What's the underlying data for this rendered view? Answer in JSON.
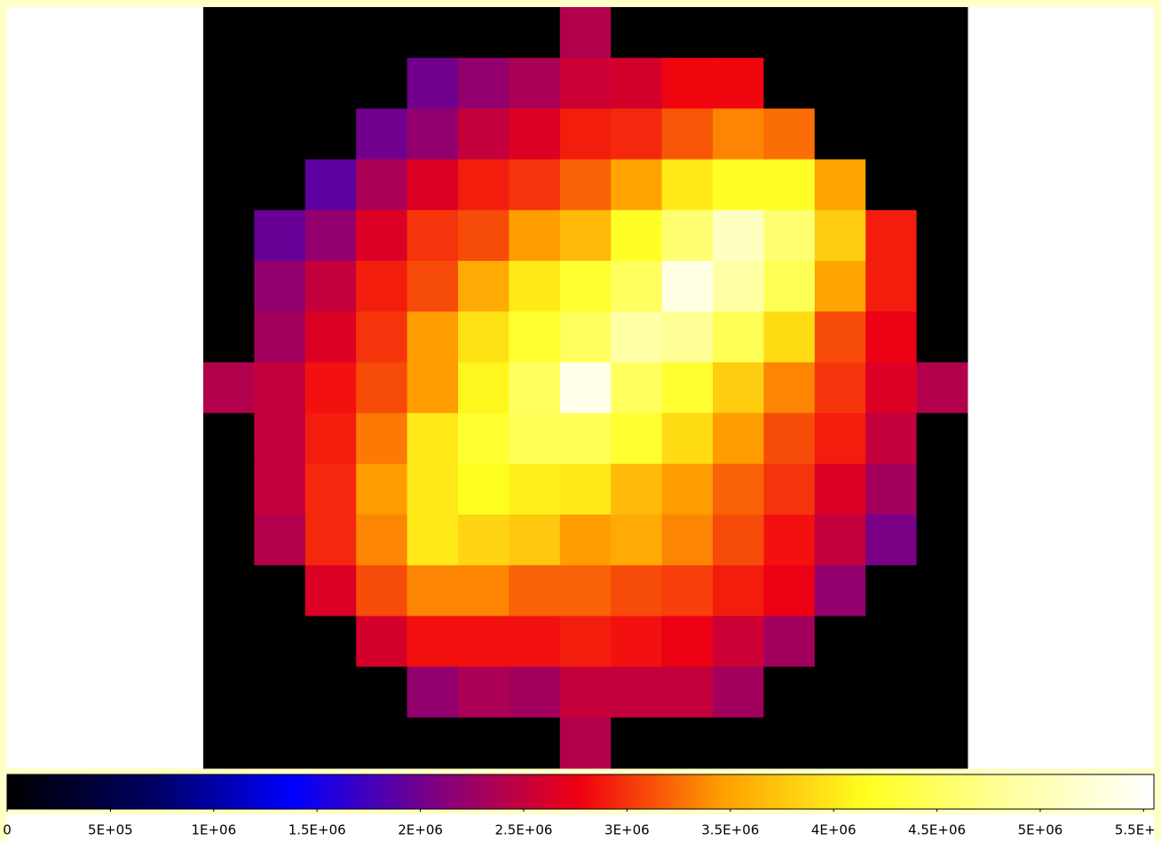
{
  "chart_data": {
    "type": "heatmap",
    "z": [
      [
        0,
        0,
        0,
        0,
        0,
        0,
        0,
        2400000,
        0,
        0,
        0,
        0,
        0,
        0,
        0
      ],
      [
        0,
        0,
        0,
        0,
        2000000,
        2200000,
        2350000,
        2550000,
        2600000,
        2800000,
        2800000,
        0,
        0,
        0,
        0
      ],
      [
        0,
        0,
        0,
        2000000,
        2200000,
        2500000,
        2650000,
        2900000,
        2950000,
        3150000,
        3350000,
        3250000,
        0,
        0,
        0
      ],
      [
        0,
        0,
        1900000,
        2350000,
        2650000,
        2900000,
        3000000,
        3200000,
        3500000,
        4000000,
        4200000,
        4200000,
        3500000,
        0,
        0
      ],
      [
        0,
        1950000,
        2200000,
        2650000,
        3000000,
        3100000,
        3450000,
        3650000,
        4200000,
        4600000,
        5100000,
        4600000,
        3800000,
        2900000,
        0
      ],
      [
        0,
        2200000,
        2500000,
        2900000,
        3100000,
        3550000,
        4000000,
        4250000,
        4500000,
        5350000,
        4900000,
        4450000,
        3500000,
        2900000,
        0
      ],
      [
        0,
        2300000,
        2650000,
        3000000,
        3450000,
        3950000,
        4250000,
        4500000,
        4900000,
        4800000,
        4450000,
        3900000,
        3100000,
        2750000,
        0
      ],
      [
        2400000,
        2500000,
        2850000,
        3100000,
        3450000,
        4100000,
        4500000,
        5400000,
        4500000,
        4250000,
        3800000,
        3350000,
        3000000,
        2650000,
        2400000
      ],
      [
        0,
        2500000,
        2900000,
        3300000,
        4000000,
        4250000,
        4450000,
        4450000,
        4250000,
        3900000,
        3450000,
        3100000,
        2900000,
        2500000,
        0
      ],
      [
        0,
        2500000,
        2950000,
        3450000,
        4000000,
        4150000,
        4050000,
        4000000,
        3650000,
        3450000,
        3200000,
        3000000,
        2650000,
        2300000,
        0
      ],
      [
        0,
        2400000,
        2950000,
        3350000,
        4000000,
        3850000,
        3750000,
        3450000,
        3550000,
        3350000,
        3100000,
        2850000,
        2500000,
        2050000,
        0
      ],
      [
        0,
        0,
        2650000,
        3100000,
        3350000,
        3350000,
        3200000,
        3200000,
        3100000,
        3050000,
        2900000,
        2750000,
        2200000,
        0,
        0
      ],
      [
        0,
        0,
        0,
        2600000,
        2850000,
        2850000,
        2850000,
        2900000,
        2850000,
        2750000,
        2550000,
        2300000,
        0,
        0,
        0
      ],
      [
        0,
        0,
        0,
        0,
        2200000,
        2350000,
        2300000,
        2500000,
        2500000,
        2500000,
        2300000,
        0,
        0,
        0,
        0
      ],
      [
        0,
        0,
        0,
        0,
        0,
        0,
        0,
        2400000,
        0,
        0,
        0,
        0,
        0,
        0,
        0
      ]
    ],
    "colormap": [
      "#000000",
      "#000060",
      "#0000ff",
      "#800080",
      "#f00010",
      "#ffa000",
      "#ffff20",
      "#ffffa0",
      "#ffffff"
    ],
    "clim": [
      0,
      5550000
    ],
    "cticks": [
      0,
      {
        "value": 500000,
        "label": "5E+05"
      },
      {
        "value": 1000000,
        "label": "1E+06"
      },
      {
        "value": 1500000,
        "label": "1.5E+06"
      },
      {
        "value": 2000000,
        "label": "2E+06"
      },
      {
        "value": 2500000,
        "label": "2.5E+06"
      },
      {
        "value": 3000000,
        "label": "3E+06"
      },
      {
        "value": 3500000,
        "label": "3.5E+06"
      },
      {
        "value": 4000000,
        "label": "4E+06"
      },
      {
        "value": 4500000,
        "label": "4.5E+06"
      },
      {
        "value": 5000000,
        "label": "5E+06"
      },
      {
        "value": 5500000,
        "label": "5.5E+06"
      }
    ]
  }
}
